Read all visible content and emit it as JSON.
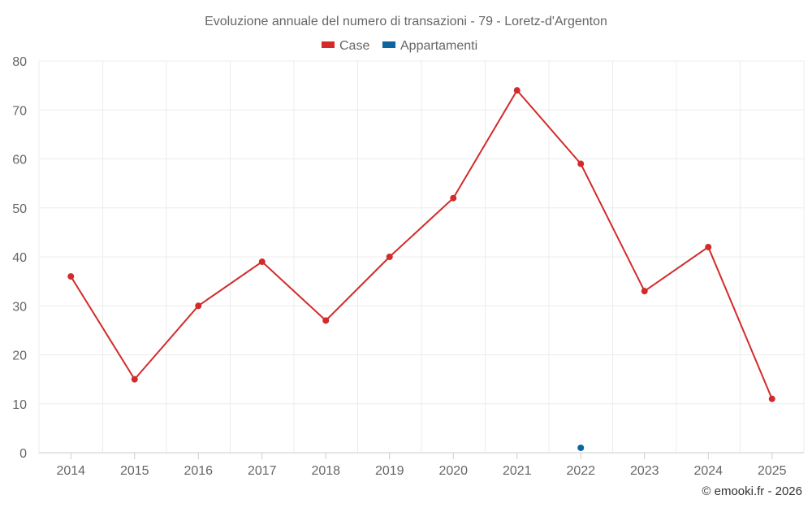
{
  "chart_data": {
    "type": "line",
    "title": "Evoluzione annuale del numero di transazioni - 79 - Loretz-d'Argenton",
    "categories": [
      "2014",
      "2015",
      "2016",
      "2017",
      "2018",
      "2019",
      "2020",
      "2021",
      "2022",
      "2023",
      "2024",
      "2025"
    ],
    "series": [
      {
        "name": "Case",
        "color": "#d32a2a",
        "values": [
          36,
          15,
          30,
          39,
          27,
          40,
          52,
          74,
          59,
          33,
          42,
          11
        ]
      },
      {
        "name": "Appartamenti",
        "color": "#0d65a0",
        "values": [
          null,
          null,
          null,
          null,
          null,
          null,
          null,
          null,
          1,
          null,
          null,
          null
        ]
      }
    ],
    "ylim": [
      0,
      80
    ],
    "yticks": [
      "0",
      "10",
      "20",
      "30",
      "40",
      "50",
      "60",
      "70",
      "80"
    ],
    "grid": true,
    "legend": "top-center",
    "xlabel": "",
    "ylabel": ""
  },
  "credit": "© emooki.fr - 2026"
}
